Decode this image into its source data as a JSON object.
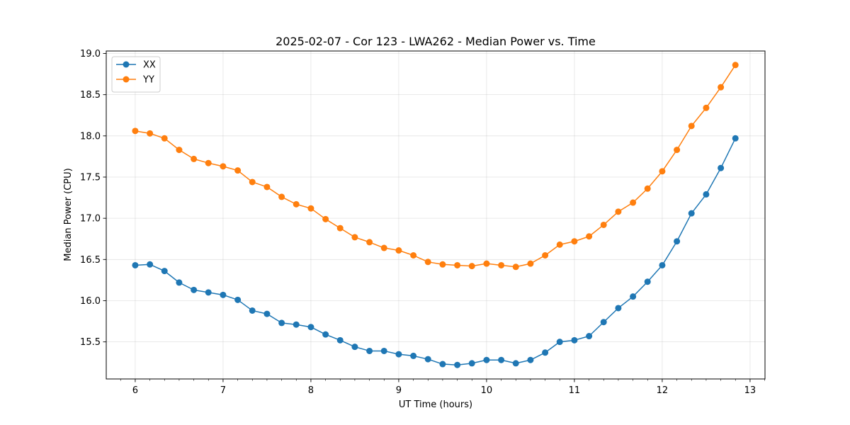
{
  "chart_data": {
    "type": "line",
    "title": "2025-02-07 - Cor 123 - LWA262 - Median Power vs. Time",
    "xlabel": "UT Time (hours)",
    "ylabel": "Median Power (CPU)",
    "xlim": [
      5.67,
      13.17
    ],
    "ylim": [
      15.05,
      19.03
    ],
    "xticks": [
      6,
      7,
      8,
      9,
      10,
      11,
      12,
      13
    ],
    "xtick_labels": [
      "6",
      "7",
      "8",
      "9",
      "10",
      "11",
      "12",
      "13"
    ],
    "yticks": [
      15.5,
      16.0,
      16.5,
      17.0,
      17.5,
      18.0,
      18.5,
      19.0
    ],
    "ytick_labels": [
      "15.5",
      "16.0",
      "16.5",
      "17.0",
      "17.5",
      "18.0",
      "18.5",
      "19.0"
    ],
    "grid": true,
    "legend": "top-left",
    "x": [
      6.0,
      6.167,
      6.333,
      6.5,
      6.667,
      6.833,
      7.0,
      7.167,
      7.333,
      7.5,
      7.667,
      7.833,
      8.0,
      8.167,
      8.333,
      8.5,
      8.667,
      8.833,
      9.0,
      9.167,
      9.333,
      9.5,
      9.667,
      9.833,
      10.0,
      10.167,
      10.333,
      10.5,
      10.667,
      10.833,
      11.0,
      11.167,
      11.333,
      11.5,
      11.667,
      11.833,
      12.0,
      12.167,
      12.333,
      12.5,
      12.667,
      12.833
    ],
    "series": [
      {
        "name": "XX",
        "color": "#1f77b4",
        "values": [
          16.43,
          16.44,
          16.36,
          16.22,
          16.13,
          16.1,
          16.07,
          16.01,
          15.88,
          15.84,
          15.73,
          15.71,
          15.68,
          15.59,
          15.52,
          15.44,
          15.39,
          15.39,
          15.35,
          15.33,
          15.29,
          15.23,
          15.22,
          15.24,
          15.28,
          15.28,
          15.24,
          15.28,
          15.37,
          15.5,
          15.52,
          15.57,
          15.74,
          15.91,
          16.05,
          16.23,
          16.43,
          16.72,
          17.06,
          17.29,
          17.61,
          17.97
        ]
      },
      {
        "name": "YY",
        "color": "#ff7f0e",
        "values": [
          18.06,
          18.03,
          17.97,
          17.83,
          17.72,
          17.67,
          17.63,
          17.58,
          17.44,
          17.38,
          17.26,
          17.17,
          17.12,
          16.99,
          16.88,
          16.77,
          16.71,
          16.64,
          16.61,
          16.55,
          16.47,
          16.44,
          16.43,
          16.42,
          16.45,
          16.43,
          16.41,
          16.45,
          16.55,
          16.68,
          16.72,
          16.78,
          16.92,
          17.08,
          17.19,
          17.36,
          17.57,
          17.83,
          18.12,
          18.34,
          18.59,
          18.86
        ]
      }
    ]
  }
}
